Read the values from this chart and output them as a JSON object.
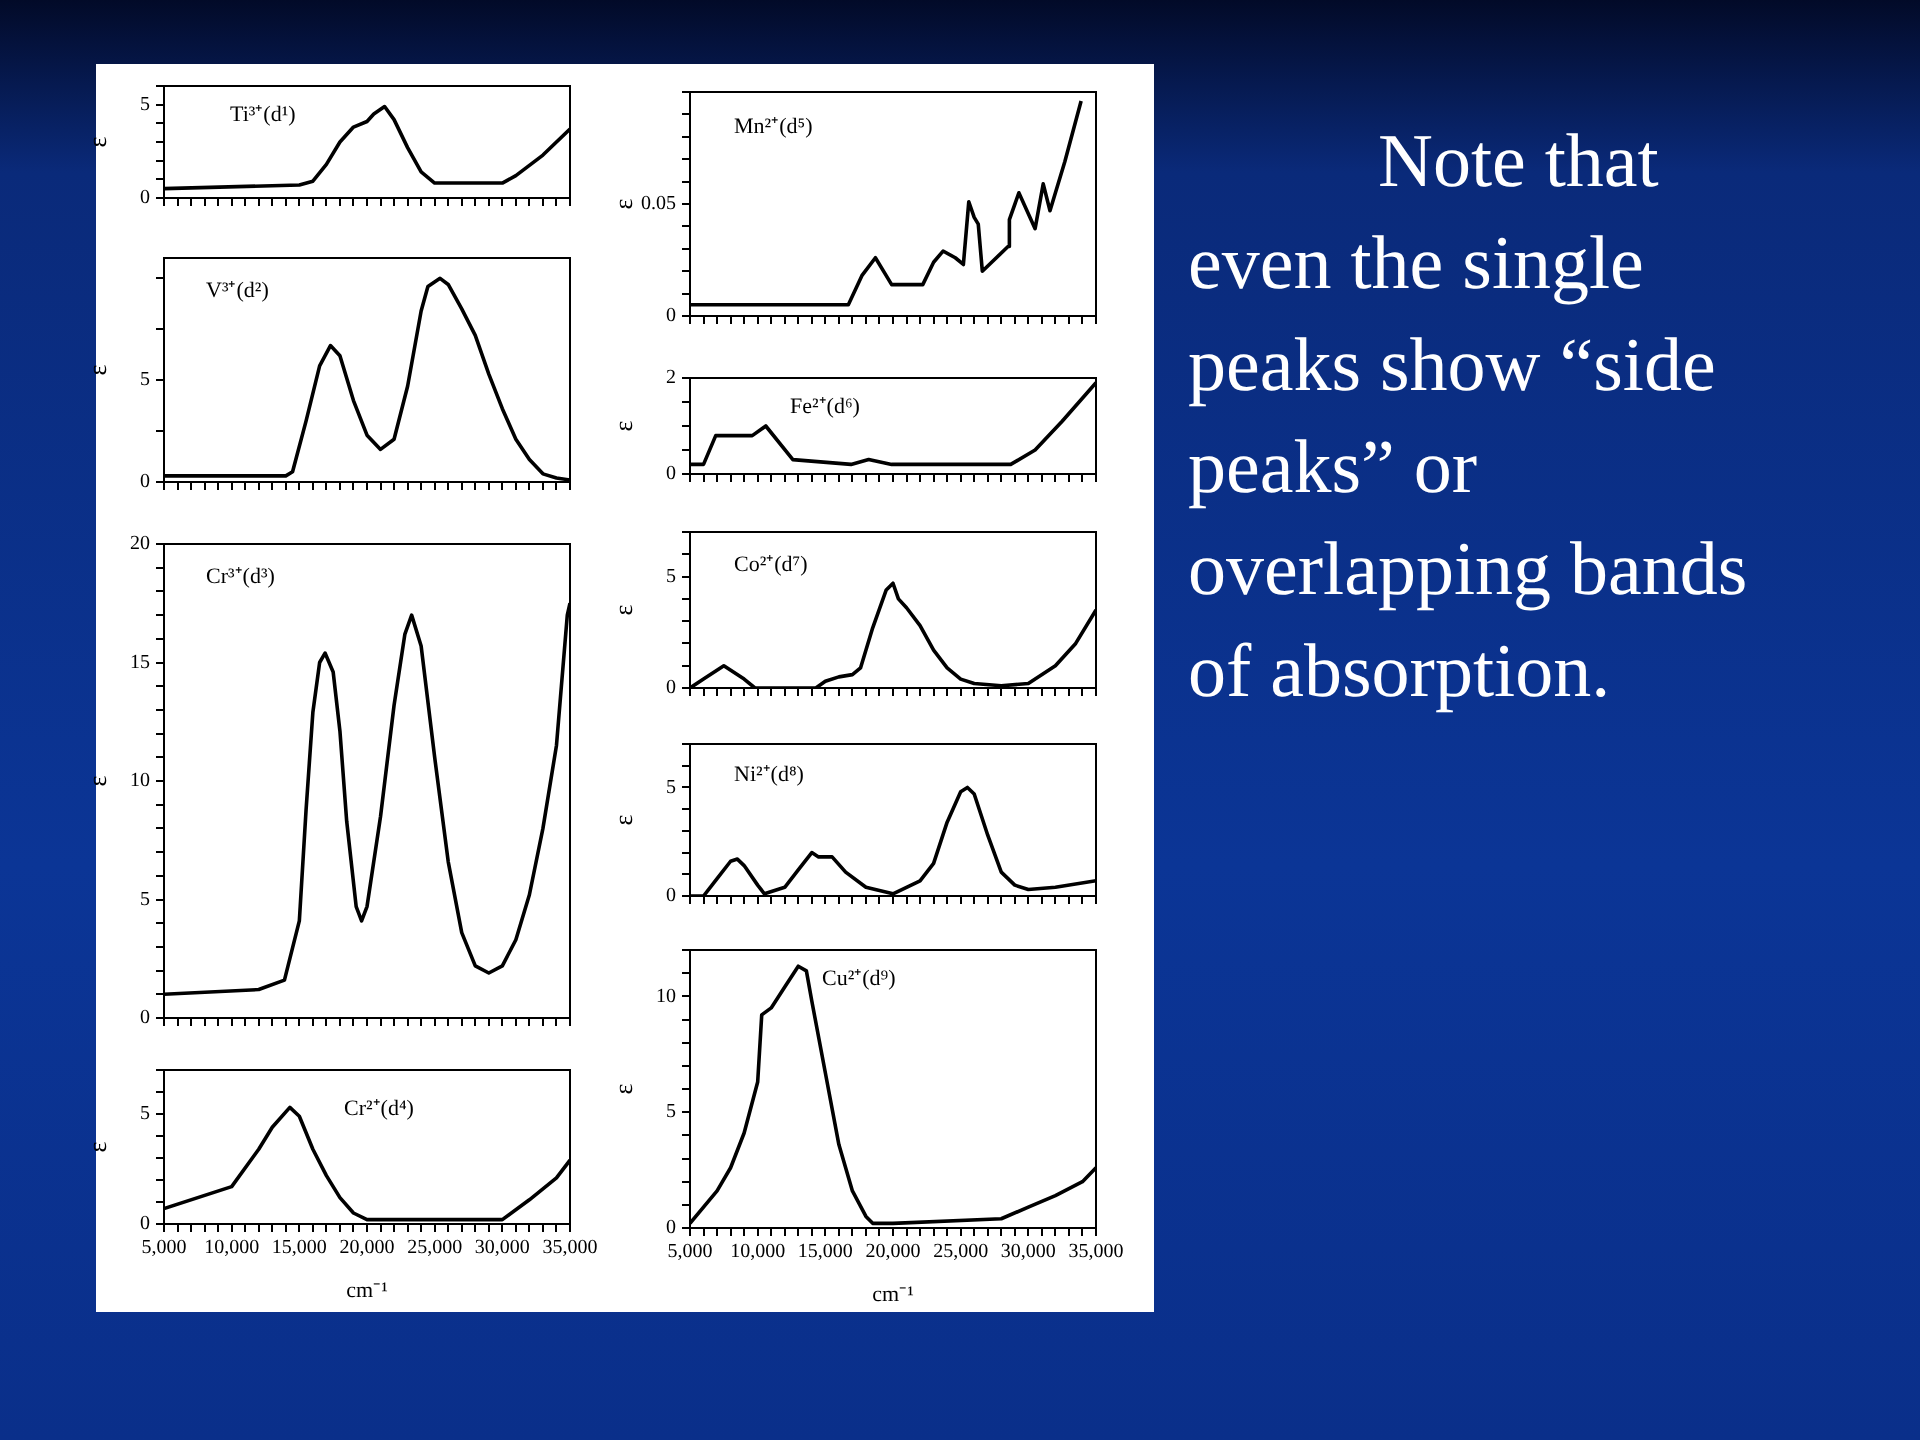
{
  "chart_data": [
    {
      "type": "line",
      "title": "Ti³⁺(d¹)",
      "ylabel": "ε",
      "legend": false,
      "grid": false,
      "marker": "none",
      "line_style": "solid",
      "tick_labels": "y",
      "xlim": [
        5000,
        35000
      ],
      "ylim": [
        0,
        6
      ],
      "xticks": [
        {
          "value": 5000,
          "label": null
        },
        {
          "value": 6000,
          "label": null
        },
        {
          "value": 7000,
          "label": null
        },
        {
          "value": 8000,
          "label": null
        },
        {
          "value": 9000,
          "label": null
        },
        {
          "value": 10000,
          "label": null
        },
        {
          "value": 11000,
          "label": null
        },
        {
          "value": 12000,
          "label": null
        },
        {
          "value": 13000,
          "label": null
        },
        {
          "value": 14000,
          "label": null
        },
        {
          "value": 15000,
          "label": null
        },
        {
          "value": 16000,
          "label": null
        },
        {
          "value": 17000,
          "label": null
        },
        {
          "value": 18000,
          "label": null
        },
        {
          "value": 19000,
          "label": null
        },
        {
          "value": 20000,
          "label": null
        },
        {
          "value": 21000,
          "label": null
        },
        {
          "value": 22000,
          "label": null
        },
        {
          "value": 23000,
          "label": null
        },
        {
          "value": 24000,
          "label": null
        },
        {
          "value": 25000,
          "label": null
        },
        {
          "value": 26000,
          "label": null
        },
        {
          "value": 27000,
          "label": null
        },
        {
          "value": 28000,
          "label": null
        },
        {
          "value": 29000,
          "label": null
        },
        {
          "value": 30000,
          "label": null
        },
        {
          "value": 31000,
          "label": null
        },
        {
          "value": 32000,
          "label": null
        },
        {
          "value": 33000,
          "label": null
        },
        {
          "value": 34000,
          "label": null
        },
        {
          "value": 35000,
          "label": null
        }
      ],
      "yticks": [
        0,
        {
          "value": 1,
          "label": null
        },
        {
          "value": 2,
          "label": null
        },
        {
          "value": 3,
          "label": null
        },
        {
          "value": 4,
          "label": null
        },
        5,
        {
          "value": 6,
          "label": null
        }
      ],
      "x": [
        5000,
        15000,
        16000,
        17000,
        18000,
        19000,
        20000,
        20500,
        21300,
        22000,
        23000,
        24000,
        25000,
        26000,
        30000,
        31000,
        33000,
        35000
      ],
      "series": [
        {
          "color": "#000000",
          "values": [
            0.5,
            0.7,
            0.9,
            1.8,
            3.0,
            3.8,
            4.1,
            4.5,
            4.9,
            4.2,
            2.7,
            1.4,
            0.8,
            0.8,
            0.8,
            1.2,
            2.3,
            3.7
          ]
        }
      ]
    },
    {
      "type": "line",
      "title": "V³⁺(d²)",
      "ylabel": "ε",
      "legend": false,
      "grid": false,
      "marker": "none",
      "line_style": "solid",
      "tick_labels": "y",
      "xlim": [
        5000,
        35000
      ],
      "ylim": [
        0,
        11
      ],
      "xticks": [
        {
          "value": 5000,
          "label": null
        },
        {
          "value": 6000,
          "label": null
        },
        {
          "value": 7000,
          "label": null
        },
        {
          "value": 8000,
          "label": null
        },
        {
          "value": 9000,
          "label": null
        },
        {
          "value": 10000,
          "label": null
        },
        {
          "value": 11000,
          "label": null
        },
        {
          "value": 12000,
          "label": null
        },
        {
          "value": 13000,
          "label": null
        },
        {
          "value": 14000,
          "label": null
        },
        {
          "value": 15000,
          "label": null
        },
        {
          "value": 16000,
          "label": null
        },
        {
          "value": 17000,
          "label": null
        },
        {
          "value": 18000,
          "label": null
        },
        {
          "value": 19000,
          "label": null
        },
        {
          "value": 20000,
          "label": null
        },
        {
          "value": 21000,
          "label": null
        },
        {
          "value": 22000,
          "label": null
        },
        {
          "value": 23000,
          "label": null
        },
        {
          "value": 24000,
          "label": null
        },
        {
          "value": 25000,
          "label": null
        },
        {
          "value": 26000,
          "label": null
        },
        {
          "value": 27000,
          "label": null
        },
        {
          "value": 28000,
          "label": null
        },
        {
          "value": 29000,
          "label": null
        },
        {
          "value": 30000,
          "label": null
        },
        {
          "value": 31000,
          "label": null
        },
        {
          "value": 32000,
          "label": null
        },
        {
          "value": 33000,
          "label": null
        },
        {
          "value": 34000,
          "label": null
        },
        {
          "value": 35000,
          "label": null
        }
      ],
      "yticks": [
        0,
        {
          "value": 2.5,
          "label": null
        },
        5,
        {
          "value": 7.5,
          "label": null
        },
        {
          "value": 10,
          "label": null
        }
      ],
      "x": [
        5000,
        14000,
        14500,
        15500,
        16500,
        17300,
        18000,
        19000,
        20000,
        21000,
        22000,
        23000,
        24000,
        24500,
        25400,
        26000,
        27000,
        28000,
        29000,
        30000,
        31000,
        32000,
        33000,
        34000,
        35000
      ],
      "series": [
        {
          "color": "#000000",
          "values": [
            0.3,
            0.3,
            0.5,
            3.0,
            5.7,
            6.7,
            6.2,
            4.0,
            2.3,
            1.6,
            2.1,
            4.7,
            8.4,
            9.6,
            10.0,
            9.7,
            8.5,
            7.2,
            5.3,
            3.6,
            2.1,
            1.1,
            0.4,
            0.2,
            0.1
          ]
        }
      ]
    },
    {
      "type": "line",
      "title": "Cr³⁺(d³)",
      "ylabel": "ε",
      "legend": false,
      "grid": false,
      "marker": "none",
      "line_style": "solid",
      "tick_labels": "y",
      "xlim": [
        5000,
        35000
      ],
      "ylim": [
        0,
        20
      ],
      "xticks": [
        {
          "value": 5000,
          "label": null
        },
        {
          "value": 6000,
          "label": null
        },
        {
          "value": 7000,
          "label": null
        },
        {
          "value": 8000,
          "label": null
        },
        {
          "value": 9000,
          "label": null
        },
        {
          "value": 10000,
          "label": null
        },
        {
          "value": 11000,
          "label": null
        },
        {
          "value": 12000,
          "label": null
        },
        {
          "value": 13000,
          "label": null
        },
        {
          "value": 14000,
          "label": null
        },
        {
          "value": 15000,
          "label": null
        },
        {
          "value": 16000,
          "label": null
        },
        {
          "value": 17000,
          "label": null
        },
        {
          "value": 18000,
          "label": null
        },
        {
          "value": 19000,
          "label": null
        },
        {
          "value": 20000,
          "label": null
        },
        {
          "value": 21000,
          "label": null
        },
        {
          "value": 22000,
          "label": null
        },
        {
          "value": 23000,
          "label": null
        },
        {
          "value": 24000,
          "label": null
        },
        {
          "value": 25000,
          "label": null
        },
        {
          "value": 26000,
          "label": null
        },
        {
          "value": 27000,
          "label": null
        },
        {
          "value": 28000,
          "label": null
        },
        {
          "value": 29000,
          "label": null
        },
        {
          "value": 30000,
          "label": null
        },
        {
          "value": 31000,
          "label": null
        },
        {
          "value": 32000,
          "label": null
        },
        {
          "value": 33000,
          "label": null
        },
        {
          "value": 34000,
          "label": null
        },
        {
          "value": 35000,
          "label": null
        }
      ],
      "yticks": [
        0,
        {
          "value": 1,
          "label": null
        },
        {
          "value": 2,
          "label": null
        },
        {
          "value": 3,
          "label": null
        },
        {
          "value": 4,
          "label": null
        },
        5,
        {
          "value": 6,
          "label": null
        },
        {
          "value": 7,
          "label": null
        },
        {
          "value": 8,
          "label": null
        },
        {
          "value": 9,
          "label": null
        },
        10,
        {
          "value": 11,
          "label": null
        },
        {
          "value": 12,
          "label": null
        },
        {
          "value": 13,
          "label": null
        },
        {
          "value": 14,
          "label": null
        },
        15,
        {
          "value": 16,
          "label": null
        },
        {
          "value": 17,
          "label": null
        },
        {
          "value": 18,
          "label": null
        },
        {
          "value": 19,
          "label": null
        },
        20
      ],
      "x": [
        5000,
        12000,
        13900,
        15000,
        15500,
        16000,
        16500,
        16900,
        17500,
        18000,
        18500,
        19200,
        19600,
        20000,
        21000,
        22000,
        22800,
        23300,
        24000,
        25000,
        26000,
        27000,
        28000,
        29000,
        30000,
        31000,
        32000,
        33000,
        34000,
        34800,
        35000
      ],
      "series": [
        {
          "color": "#000000",
          "values": [
            1.0,
            1.2,
            1.6,
            4.1,
            8.8,
            12.9,
            15.0,
            15.4,
            14.6,
            12.1,
            8.3,
            4.7,
            4.1,
            4.7,
            8.5,
            13.2,
            16.2,
            17.0,
            15.7,
            11.0,
            6.6,
            3.6,
            2.2,
            1.9,
            2.2,
            3.3,
            5.2,
            8.0,
            11.5,
            17.0,
            17.5
          ]
        }
      ]
    },
    {
      "type": "line",
      "title": "Cr²⁺(d⁴)",
      "xlabel": "cm⁻¹",
      "ylabel": "ε",
      "legend": false,
      "grid": false,
      "marker": "none",
      "line_style": "solid",
      "xlim": [
        5000,
        35000
      ],
      "ylim": [
        0,
        7
      ],
      "xticks": [
        {
          "value": 5000,
          "label": "5,000"
        },
        {
          "value": 6000,
          "label": null
        },
        {
          "value": 7000,
          "label": null
        },
        {
          "value": 8000,
          "label": null
        },
        {
          "value": 9000,
          "label": null
        },
        {
          "value": 10000,
          "label": "10,000"
        },
        {
          "value": 11000,
          "label": null
        },
        {
          "value": 12000,
          "label": null
        },
        {
          "value": 13000,
          "label": null
        },
        {
          "value": 14000,
          "label": null
        },
        {
          "value": 15000,
          "label": "15,000"
        },
        {
          "value": 16000,
          "label": null
        },
        {
          "value": 17000,
          "label": null
        },
        {
          "value": 18000,
          "label": null
        },
        {
          "value": 19000,
          "label": null
        },
        {
          "value": 20000,
          "label": "20,000"
        },
        {
          "value": 21000,
          "label": null
        },
        {
          "value": 22000,
          "label": null
        },
        {
          "value": 23000,
          "label": null
        },
        {
          "value": 24000,
          "label": null
        },
        {
          "value": 25000,
          "label": "25,000"
        },
        {
          "value": 26000,
          "label": null
        },
        {
          "value": 27000,
          "label": null
        },
        {
          "value": 28000,
          "label": null
        },
        {
          "value": 29000,
          "label": null
        },
        {
          "value": 30000,
          "label": "30,000"
        },
        {
          "value": 31000,
          "label": null
        },
        {
          "value": 32000,
          "label": null
        },
        {
          "value": 33000,
          "label": null
        },
        {
          "value": 34000,
          "label": null
        },
        {
          "value": 35000,
          "label": "35,000"
        }
      ],
      "yticks": [
        0,
        {
          "value": 1,
          "label": null
        },
        {
          "value": 2,
          "label": null
        },
        {
          "value": 3,
          "label": null
        },
        {
          "value": 4,
          "label": null
        },
        5,
        {
          "value": 6,
          "label": null
        },
        {
          "value": 7,
          "label": null
        }
      ],
      "x": [
        5000,
        10000,
        12000,
        13000,
        14300,
        15000,
        16000,
        17000,
        18000,
        19000,
        20000,
        30000,
        32000,
        34000,
        35000
      ],
      "series": [
        {
          "color": "#000000",
          "values": [
            0.7,
            1.7,
            3.4,
            4.4,
            5.3,
            4.9,
            3.4,
            2.2,
            1.2,
            0.5,
            0.2,
            0.2,
            1.1,
            2.1,
            2.9
          ]
        }
      ]
    },
    {
      "type": "line",
      "title": "Mn²⁺(d⁵)",
      "ylabel": "ε",
      "legend": false,
      "grid": false,
      "marker": "none",
      "line_style": "solid",
      "tick_labels": "y",
      "xlim": [
        5000,
        35000
      ],
      "ylim": [
        0,
        0.1
      ],
      "xticks": [
        {
          "value": 5000,
          "label": null
        },
        {
          "value": 6000,
          "label": null
        },
        {
          "value": 7000,
          "label": null
        },
        {
          "value": 8000,
          "label": null
        },
        {
          "value": 9000,
          "label": null
        },
        {
          "value": 10000,
          "label": null
        },
        {
          "value": 11000,
          "label": null
        },
        {
          "value": 12000,
          "label": null
        },
        {
          "value": 13000,
          "label": null
        },
        {
          "value": 14000,
          "label": null
        },
        {
          "value": 15000,
          "label": null
        },
        {
          "value": 16000,
          "label": null
        },
        {
          "value": 17000,
          "label": null
        },
        {
          "value": 18000,
          "label": null
        },
        {
          "value": 19000,
          "label": null
        },
        {
          "value": 20000,
          "label": null
        },
        {
          "value": 21000,
          "label": null
        },
        {
          "value": 22000,
          "label": null
        },
        {
          "value": 23000,
          "label": null
        },
        {
          "value": 24000,
          "label": null
        },
        {
          "value": 25000,
          "label": null
        },
        {
          "value": 26000,
          "label": null
        },
        {
          "value": 27000,
          "label": null
        },
        {
          "value": 28000,
          "label": null
        },
        {
          "value": 29000,
          "label": null
        },
        {
          "value": 30000,
          "label": null
        },
        {
          "value": 31000,
          "label": null
        },
        {
          "value": 32000,
          "label": null
        },
        {
          "value": 33000,
          "label": null
        },
        {
          "value": 34000,
          "label": null
        },
        {
          "value": 35000,
          "label": null
        }
      ],
      "yticks": [
        0,
        {
          "value": 0.01,
          "label": null
        },
        {
          "value": 0.02,
          "label": null
        },
        {
          "value": 0.03,
          "label": null
        },
        {
          "value": 0.04,
          "label": null
        },
        0.05,
        {
          "value": 0.06,
          "label": null
        },
        {
          "value": 0.07,
          "label": null
        },
        {
          "value": 0.08,
          "label": null
        },
        {
          "value": 0.09,
          "label": null
        },
        {
          "value": 0.1,
          "label": null
        }
      ],
      "x": [
        5000,
        16700,
        17700,
        18700,
        19500,
        19900,
        22200,
        23000,
        23700,
        24600,
        25200,
        25600,
        26000,
        26300,
        26600,
        28500,
        28600,
        29300,
        30500,
        31100,
        31600,
        32700,
        33900
      ],
      "series": [
        {
          "color": "#000000",
          "values": [
            0.005,
            0.005,
            0.018,
            0.026,
            0.018,
            0.014,
            0.014,
            0.024,
            0.029,
            0.026,
            0.023,
            0.051,
            0.044,
            0.041,
            0.02,
            0.031,
            0.043,
            0.055,
            0.039,
            0.059,
            0.047,
            0.069,
            0.096
          ]
        }
      ]
    },
    {
      "type": "line",
      "title": "Fe²⁺(d⁶)",
      "ylabel": "ε",
      "legend": false,
      "grid": false,
      "marker": "none",
      "line_style": "solid",
      "tick_labels": "y",
      "xlim": [
        5000,
        35000
      ],
      "ylim": [
        0,
        2
      ],
      "xticks": [
        {
          "value": 5000,
          "label": null
        },
        {
          "value": 6000,
          "label": null
        },
        {
          "value": 7000,
          "label": null
        },
        {
          "value": 8000,
          "label": null
        },
        {
          "value": 9000,
          "label": null
        },
        {
          "value": 10000,
          "label": null
        },
        {
          "value": 11000,
          "label": null
        },
        {
          "value": 12000,
          "label": null
        },
        {
          "value": 13000,
          "label": null
        },
        {
          "value": 14000,
          "label": null
        },
        {
          "value": 15000,
          "label": null
        },
        {
          "value": 16000,
          "label": null
        },
        {
          "value": 17000,
          "label": null
        },
        {
          "value": 18000,
          "label": null
        },
        {
          "value": 19000,
          "label": null
        },
        {
          "value": 20000,
          "label": null
        },
        {
          "value": 21000,
          "label": null
        },
        {
          "value": 22000,
          "label": null
        },
        {
          "value": 23000,
          "label": null
        },
        {
          "value": 24000,
          "label": null
        },
        {
          "value": 25000,
          "label": null
        },
        {
          "value": 26000,
          "label": null
        },
        {
          "value": 27000,
          "label": null
        },
        {
          "value": 28000,
          "label": null
        },
        {
          "value": 29000,
          "label": null
        },
        {
          "value": 30000,
          "label": null
        },
        {
          "value": 31000,
          "label": null
        },
        {
          "value": 32000,
          "label": null
        },
        {
          "value": 33000,
          "label": null
        },
        {
          "value": 34000,
          "label": null
        },
        {
          "value": 35000,
          "label": null
        }
      ],
      "yticks": [
        0,
        {
          "value": 0.5,
          "label": null
        },
        {
          "value": 1,
          "label": null
        },
        {
          "value": 1.5,
          "label": null
        },
        2
      ],
      "x": [
        5000,
        6000,
        6900,
        9600,
        10600,
        12600,
        16900,
        18200,
        19900,
        28700,
        30500,
        32500,
        35000
      ],
      "series": [
        {
          "color": "#000000",
          "values": [
            0.2,
            0.2,
            0.8,
            0.8,
            1.0,
            0.3,
            0.2,
            0.3,
            0.2,
            0.2,
            0.5,
            1.1,
            1.9
          ]
        }
      ]
    },
    {
      "type": "line",
      "title": "Co²⁺(d⁷)",
      "ylabel": "ε",
      "legend": false,
      "grid": false,
      "marker": "none",
      "line_style": "solid",
      "tick_labels": "y",
      "xlim": [
        5000,
        35000
      ],
      "ylim": [
        0,
        7
      ],
      "xticks": [
        {
          "value": 5000,
          "label": null
        },
        {
          "value": 6000,
          "label": null
        },
        {
          "value": 7000,
          "label": null
        },
        {
          "value": 8000,
          "label": null
        },
        {
          "value": 9000,
          "label": null
        },
        {
          "value": 10000,
          "label": null
        },
        {
          "value": 11000,
          "label": null
        },
        {
          "value": 12000,
          "label": null
        },
        {
          "value": 13000,
          "label": null
        },
        {
          "value": 14000,
          "label": null
        },
        {
          "value": 15000,
          "label": null
        },
        {
          "value": 16000,
          "label": null
        },
        {
          "value": 17000,
          "label": null
        },
        {
          "value": 18000,
          "label": null
        },
        {
          "value": 19000,
          "label": null
        },
        {
          "value": 20000,
          "label": null
        },
        {
          "value": 21000,
          "label": null
        },
        {
          "value": 22000,
          "label": null
        },
        {
          "value": 23000,
          "label": null
        },
        {
          "value": 24000,
          "label": null
        },
        {
          "value": 25000,
          "label": null
        },
        {
          "value": 26000,
          "label": null
        },
        {
          "value": 27000,
          "label": null
        },
        {
          "value": 28000,
          "label": null
        },
        {
          "value": 29000,
          "label": null
        },
        {
          "value": 30000,
          "label": null
        },
        {
          "value": 31000,
          "label": null
        },
        {
          "value": 32000,
          "label": null
        },
        {
          "value": 33000,
          "label": null
        },
        {
          "value": 34000,
          "label": null
        },
        {
          "value": 35000,
          "label": null
        }
      ],
      "yticks": [
        0,
        {
          "value": 1,
          "label": null
        },
        {
          "value": 2,
          "label": null
        },
        {
          "value": 3,
          "label": null
        },
        {
          "value": 4,
          "label": null
        },
        5,
        {
          "value": 6,
          "label": null
        },
        {
          "value": 7,
          "label": null
        }
      ],
      "x": [
        5000,
        6000,
        7500,
        9000,
        9800,
        14300,
        15000,
        16000,
        17000,
        17600,
        18500,
        19500,
        20000,
        20400,
        21000,
        22000,
        23000,
        24000,
        25000,
        26000,
        28000,
        30000,
        32000,
        33500,
        35000
      ],
      "series": [
        {
          "color": "#000000",
          "values": [
            0,
            0.4,
            1.0,
            0.4,
            0,
            0,
            0.3,
            0.5,
            0.6,
            0.9,
            2.7,
            4.4,
            4.7,
            4.0,
            3.6,
            2.8,
            1.7,
            0.9,
            0.4,
            0.2,
            0.1,
            0.2,
            1.0,
            2.0,
            3.5
          ]
        }
      ]
    },
    {
      "type": "line",
      "title": "Ni²⁺(d⁸)",
      "ylabel": "ε",
      "legend": false,
      "grid": false,
      "marker": "none",
      "line_style": "solid",
      "tick_labels": "y",
      "xlim": [
        5000,
        35000
      ],
      "ylim": [
        0,
        7
      ],
      "xticks": [
        {
          "value": 5000,
          "label": null
        },
        {
          "value": 6000,
          "label": null
        },
        {
          "value": 7000,
          "label": null
        },
        {
          "value": 8000,
          "label": null
        },
        {
          "value": 9000,
          "label": null
        },
        {
          "value": 10000,
          "label": null
        },
        {
          "value": 11000,
          "label": null
        },
        {
          "value": 12000,
          "label": null
        },
        {
          "value": 13000,
          "label": null
        },
        {
          "value": 14000,
          "label": null
        },
        {
          "value": 15000,
          "label": null
        },
        {
          "value": 16000,
          "label": null
        },
        {
          "value": 17000,
          "label": null
        },
        {
          "value": 18000,
          "label": null
        },
        {
          "value": 19000,
          "label": null
        },
        {
          "value": 20000,
          "label": null
        },
        {
          "value": 21000,
          "label": null
        },
        {
          "value": 22000,
          "label": null
        },
        {
          "value": 23000,
          "label": null
        },
        {
          "value": 24000,
          "label": null
        },
        {
          "value": 25000,
          "label": null
        },
        {
          "value": 26000,
          "label": null
        },
        {
          "value": 27000,
          "label": null
        },
        {
          "value": 28000,
          "label": null
        },
        {
          "value": 29000,
          "label": null
        },
        {
          "value": 30000,
          "label": null
        },
        {
          "value": 31000,
          "label": null
        },
        {
          "value": 32000,
          "label": null
        },
        {
          "value": 33000,
          "label": null
        },
        {
          "value": 34000,
          "label": null
        },
        {
          "value": 35000,
          "label": null
        }
      ],
      "yticks": [
        0,
        {
          "value": 1,
          "label": null
        },
        {
          "value": 2,
          "label": null
        },
        {
          "value": 3,
          "label": null
        },
        {
          "value": 4,
          "label": null
        },
        5,
        {
          "value": 6,
          "label": null
        },
        {
          "value": 7,
          "label": null
        }
      ],
      "x": [
        5000,
        6000,
        7000,
        8000,
        8500,
        9000,
        10000,
        10500,
        12000,
        13000,
        14000,
        14500,
        15500,
        16500,
        18000,
        20000,
        22000,
        23000,
        24000,
        25000,
        25500,
        26000,
        27000,
        28000,
        29000,
        30000,
        32000,
        35000
      ],
      "series": [
        {
          "color": "#000000",
          "values": [
            0,
            0,
            0.8,
            1.6,
            1.7,
            1.4,
            0.5,
            0.1,
            0.4,
            1.2,
            2.0,
            1.8,
            1.8,
            1.1,
            0.4,
            0.1,
            0.7,
            1.5,
            3.4,
            4.8,
            5.0,
            4.7,
            2.8,
            1.1,
            0.5,
            0.3,
            0.4,
            0.7
          ]
        }
      ]
    },
    {
      "type": "line",
      "title": "Cu²⁺(d⁹)",
      "xlabel": "cm⁻¹",
      "ylabel": "ε",
      "legend": false,
      "grid": false,
      "marker": "none",
      "line_style": "solid",
      "xlim": [
        5000,
        35000
      ],
      "ylim": [
        0,
        12
      ],
      "xticks": [
        {
          "value": 5000,
          "label": "5,000"
        },
        {
          "value": 6000,
          "label": null
        },
        {
          "value": 7000,
          "label": null
        },
        {
          "value": 8000,
          "label": null
        },
        {
          "value": 9000,
          "label": null
        },
        {
          "value": 10000,
          "label": "10,000"
        },
        {
          "value": 11000,
          "label": null
        },
        {
          "value": 12000,
          "label": null
        },
        {
          "value": 13000,
          "label": null
        },
        {
          "value": 14000,
          "label": null
        },
        {
          "value": 15000,
          "label": "15,000"
        },
        {
          "value": 16000,
          "label": null
        },
        {
          "value": 17000,
          "label": null
        },
        {
          "value": 18000,
          "label": null
        },
        {
          "value": 19000,
          "label": null
        },
        {
          "value": 20000,
          "label": "20,000"
        },
        {
          "value": 21000,
          "label": null
        },
        {
          "value": 22000,
          "label": null
        },
        {
          "value": 23000,
          "label": null
        },
        {
          "value": 24000,
          "label": null
        },
        {
          "value": 25000,
          "label": "25,000"
        },
        {
          "value": 26000,
          "label": null
        },
        {
          "value": 27000,
          "label": null
        },
        {
          "value": 28000,
          "label": null
        },
        {
          "value": 29000,
          "label": null
        },
        {
          "value": 30000,
          "label": "30,000"
        },
        {
          "value": 31000,
          "label": null
        },
        {
          "value": 32000,
          "label": null
        },
        {
          "value": 33000,
          "label": null
        },
        {
          "value": 34000,
          "label": null
        },
        {
          "value": 35000,
          "label": "35,000"
        }
      ],
      "yticks": [
        0,
        {
          "value": 1,
          "label": null
        },
        {
          "value": 2,
          "label": null
        },
        {
          "value": 3,
          "label": null
        },
        {
          "value": 4,
          "label": null
        },
        5,
        {
          "value": 6,
          "label": null
        },
        {
          "value": 7,
          "label": null
        },
        {
          "value": 8,
          "label": null
        },
        {
          "value": 9,
          "label": null
        },
        10,
        {
          "value": 11,
          "label": null
        },
        {
          "value": 12,
          "label": null
        }
      ],
      "x": [
        5000,
        7000,
        8000,
        9000,
        10000,
        10300,
        11000,
        12000,
        13000,
        13600,
        14000,
        15000,
        16000,
        17000,
        18000,
        18500,
        20000,
        28000,
        30000,
        32000,
        34000,
        35000
      ],
      "series": [
        {
          "color": "#000000",
          "values": [
            0.2,
            1.6,
            2.6,
            4.1,
            6.3,
            9.2,
            9.5,
            10.4,
            11.3,
            11.1,
            9.8,
            6.7,
            3.6,
            1.6,
            0.5,
            0.2,
            0.2,
            0.4,
            0.9,
            1.4,
            2.0,
            2.6
          ]
        }
      ]
    },
    {
      "type": "other",
      "annotations": [
        "Note that even the single peaks show “side peaks” or overlapping bands of absorption."
      ]
    }
  ]
}
